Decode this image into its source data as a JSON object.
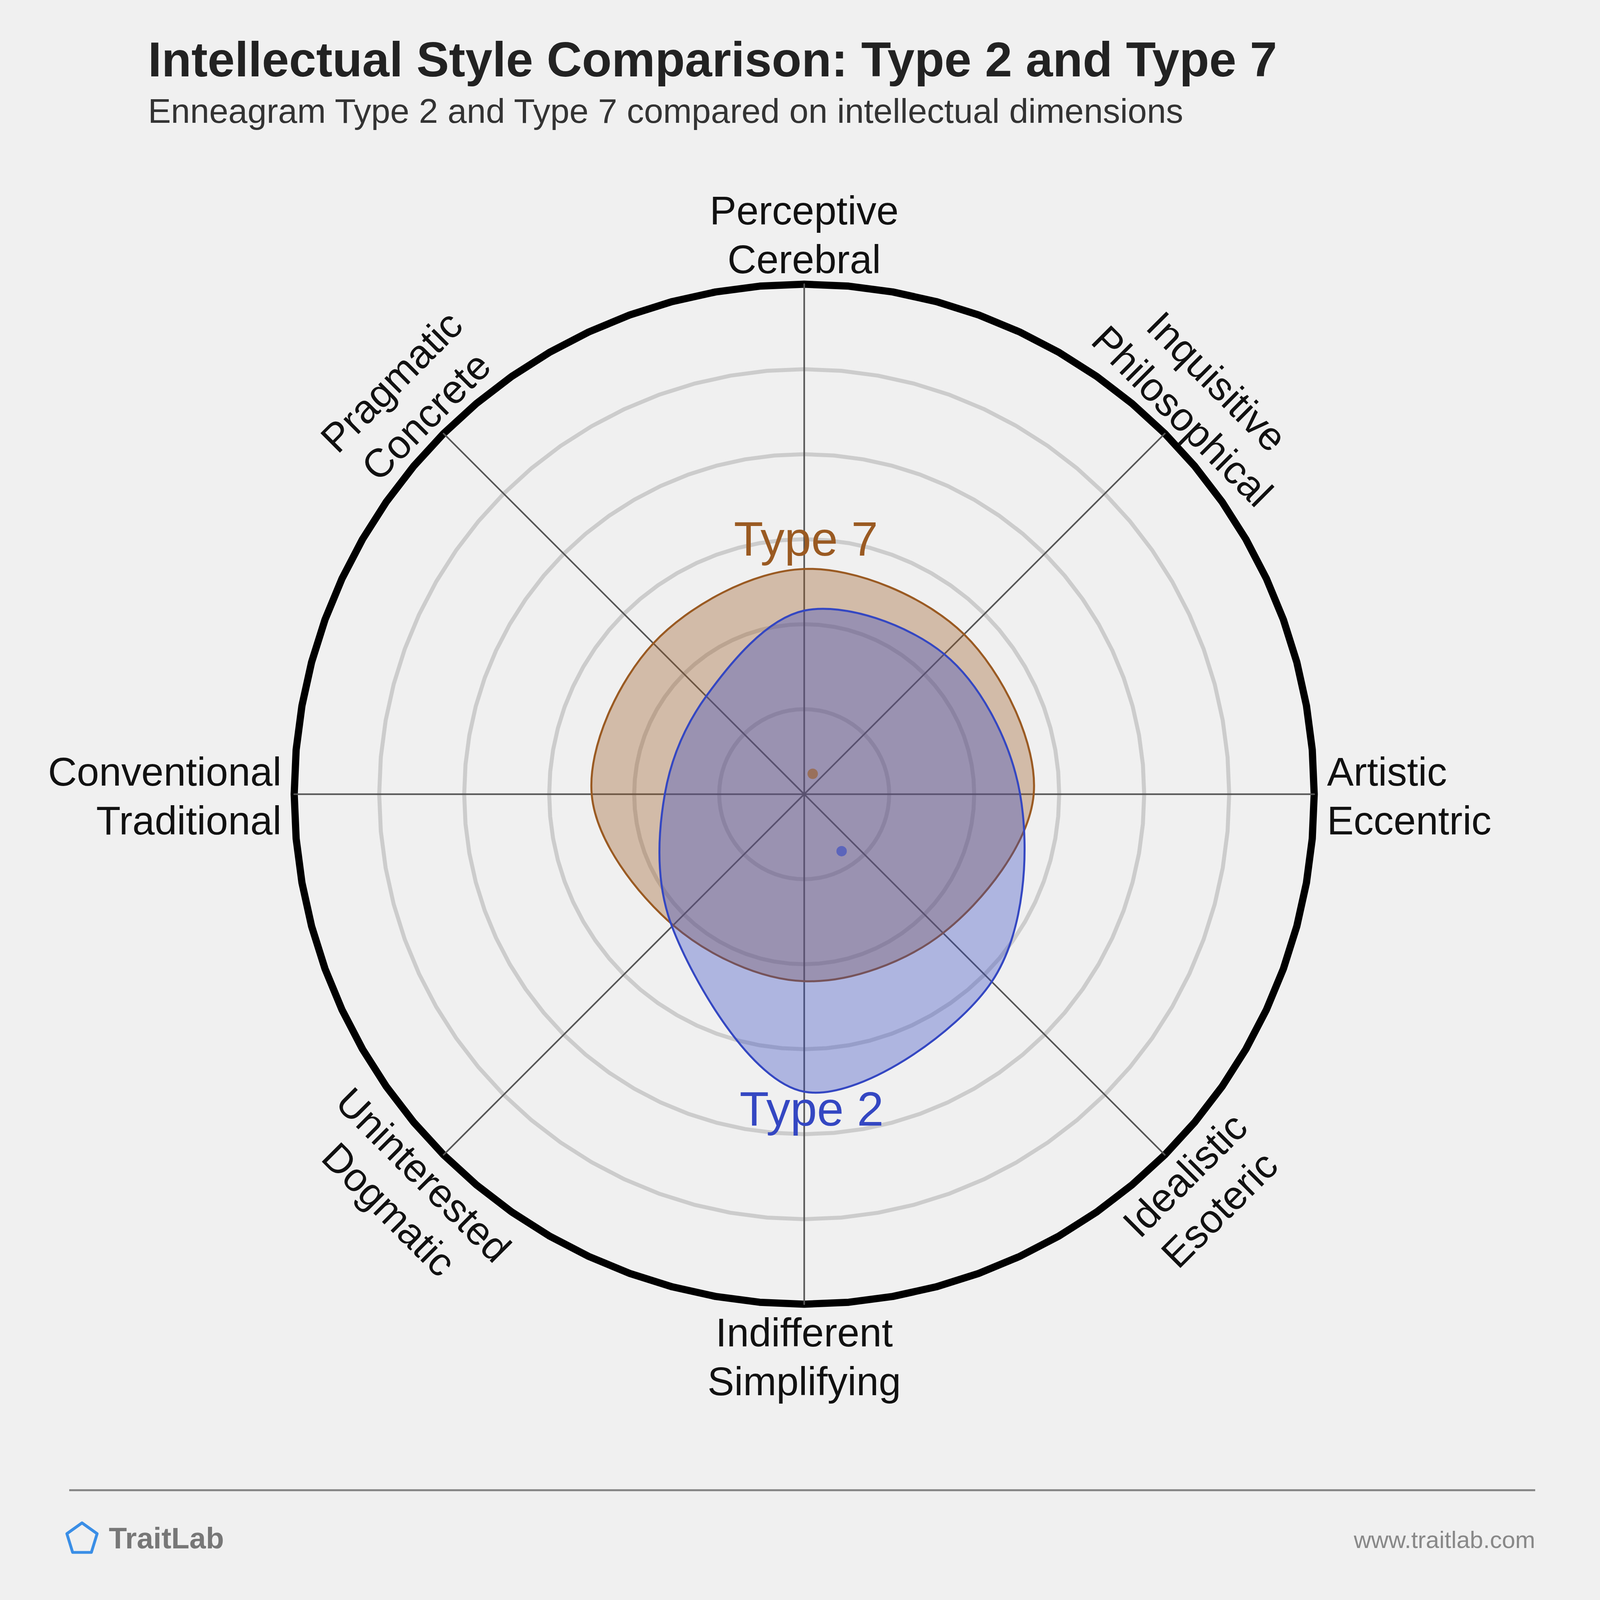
{
  "chart_data": {
    "type": "radar",
    "title": "Intellectual Style Comparison: Type 2 and Type 7",
    "subtitle": "Enneagram Type 2 and Type 7 compared on intellectual dimensions",
    "categories": [
      "Perceptive\nCerebral",
      "Inquisitive\nPhilosophical",
      "Artistic\nEccentric",
      "Idealistic\nEsoteric",
      "Indifferent\nSimplifying",
      "Uninterested\nDogmatic",
      "Conventional\nTraditional",
      "Pragmatic\nConcrete"
    ],
    "series": [
      {
        "name": "Type 2",
        "color": "#3447c2",
        "values": [
          2.16,
          2.33,
          2.54,
          3.12,
          3.5,
          2.2,
          1.64,
          1.63
        ],
        "center": [
          0.44,
          -0.67
        ]
      },
      {
        "name": "Type 7",
        "color": "#9a5a22",
        "values": [
          2.65,
          2.66,
          2.7,
          2.31,
          2.2,
          2.18,
          2.5,
          2.51
        ],
        "center": [
          0.1,
          0.24
        ]
      }
    ],
    "ylim": [
      0,
      6
    ],
    "yticks": [
      1,
      2,
      3,
      4,
      5,
      6
    ],
    "grid": true,
    "tick_labels": false,
    "footer": {
      "left": "TraitLab",
      "right": "www.traitlab.com"
    }
  }
}
